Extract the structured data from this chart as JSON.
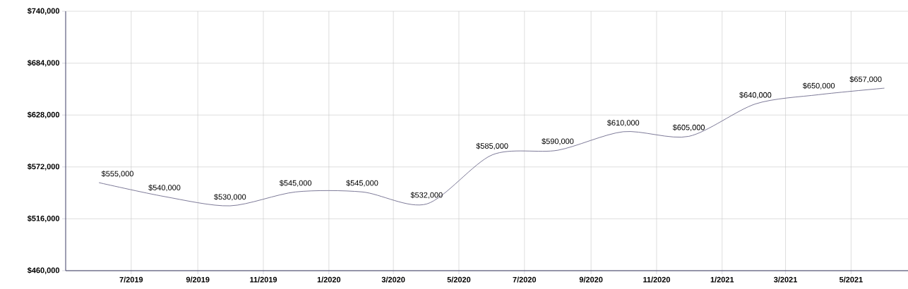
{
  "chart_data": {
    "type": "line",
    "x": [
      "2019-06",
      "2019-08",
      "2019-10",
      "2019-12",
      "2020-02",
      "2020-04",
      "2020-06",
      "2020-08",
      "2020-10",
      "2020-12",
      "2021-02",
      "2021-04",
      "2021-06"
    ],
    "series": [
      {
        "color": "#6e6a8c",
        "values": [
          555000,
          540000,
          530000,
          545000,
          545000,
          532000,
          585000,
          590000,
          610000,
          605000,
          640000,
          650000,
          657000
        ],
        "value_labels": [
          "$555,000",
          "$540,000",
          "$530,000",
          "$545,000",
          "$545,000",
          "$532,000",
          "$585,000",
          "$590,000",
          "$610,000",
          "$605,000",
          "$640,000",
          "$650,000",
          "$657,000"
        ]
      }
    ],
    "xlim": [
      "2019-05",
      "2021-06-23"
    ],
    "xticks": [
      {
        "value": "2019-07",
        "label": "7/2019"
      },
      {
        "value": "2019-09",
        "label": "9/2019"
      },
      {
        "value": "2019-11",
        "label": "11/2019"
      },
      {
        "value": "2020-01",
        "label": "1/2020"
      },
      {
        "value": "2020-03",
        "label": "3/2020"
      },
      {
        "value": "2020-05",
        "label": "5/2020"
      },
      {
        "value": "2020-07",
        "label": "7/2020"
      },
      {
        "value": "2020-09",
        "label": "9/2020"
      },
      {
        "value": "2020-11",
        "label": "11/2020"
      },
      {
        "value": "2021-01",
        "label": "1/2021"
      },
      {
        "value": "2021-03",
        "label": "3/2021"
      },
      {
        "value": "2021-05",
        "label": "5/2021"
      }
    ],
    "ylim": [
      460000,
      740000
    ],
    "yticks": [
      {
        "value": 460000,
        "label": "$460,000"
      },
      {
        "value": 516000,
        "label": "$516,000"
      },
      {
        "value": 572000,
        "label": "$572,000"
      },
      {
        "value": 628000,
        "label": "$628,000"
      },
      {
        "value": 684000,
        "label": "$684,000"
      },
      {
        "value": 740000,
        "label": "$740,000"
      }
    ],
    "grid": true,
    "marker": "none",
    "line_style": "solid"
  }
}
